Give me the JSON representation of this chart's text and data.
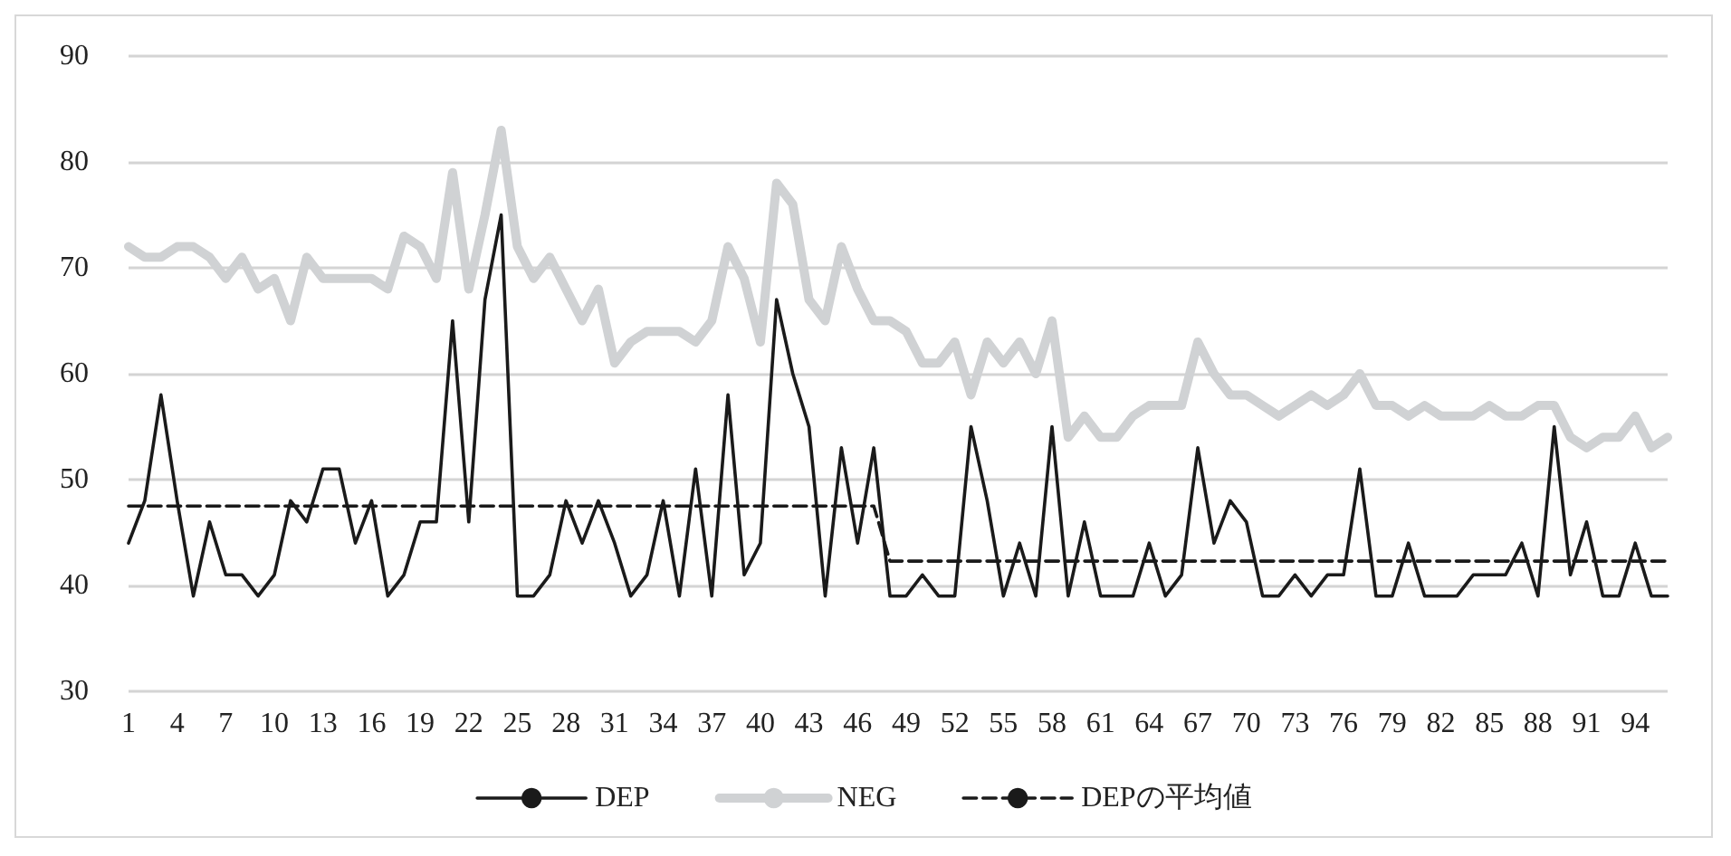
{
  "chart_data": {
    "type": "line",
    "categories": [
      "1",
      null,
      null,
      "4",
      null,
      null,
      "7",
      null,
      null,
      "10",
      null,
      null,
      "13",
      null,
      null,
      "16",
      null,
      null,
      "19",
      null,
      null,
      "22",
      null,
      null,
      "25",
      null,
      null,
      "28",
      null,
      null,
      "31",
      null,
      null,
      "34",
      null,
      null,
      "37",
      null,
      null,
      "40",
      null,
      null,
      "43",
      null,
      null,
      "46",
      null,
      null,
      "49",
      null,
      null,
      "52",
      null,
      null,
      "55",
      null,
      null,
      "58",
      null,
      null,
      "61",
      null,
      null,
      "64",
      null,
      null,
      "67",
      null,
      null,
      "70",
      null,
      null,
      "73",
      null,
      null,
      "76",
      null,
      null,
      "79",
      null,
      null,
      "82",
      null,
      null,
      "85",
      null,
      null,
      "88",
      null,
      null,
      "91",
      null,
      null,
      "94",
      null,
      null
    ],
    "series": [
      {
        "name": "DEP",
        "color": "#1a1a1a",
        "line_style": "solid",
        "values": [
          44,
          48,
          58,
          48,
          39,
          46,
          41,
          41,
          39,
          41,
          48,
          46,
          51,
          51,
          44,
          48,
          39,
          41,
          46,
          46,
          65,
          46,
          67,
          75,
          39,
          39,
          41,
          48,
          44,
          48,
          44,
          39,
          41,
          48,
          39,
          51,
          39,
          58,
          41,
          44,
          67,
          60,
          55,
          39,
          53,
          44,
          53,
          39,
          39,
          41,
          39,
          39,
          55,
          48,
          39,
          44,
          39,
          55,
          39,
          46,
          39,
          39,
          39,
          44,
          39,
          41,
          53,
          44,
          48,
          46,
          39,
          39,
          41,
          39,
          41,
          41,
          51,
          39,
          39,
          44,
          39,
          39,
          39,
          41,
          41,
          41,
          44,
          39,
          55,
          41,
          46,
          39,
          39,
          44,
          39,
          39
        ]
      },
      {
        "name": "NEG",
        "color": "#d0d2d4",
        "line_style": "solid",
        "values": [
          72,
          71,
          71,
          72,
          72,
          71,
          69,
          71,
          68,
          69,
          65,
          71,
          69,
          69,
          69,
          69,
          68,
          73,
          72,
          69,
          79,
          68,
          75,
          83,
          72,
          69,
          71,
          68,
          65,
          68,
          61,
          63,
          64,
          64,
          64,
          63,
          65,
          72,
          69,
          63,
          78,
          76,
          67,
          65,
          72,
          68,
          65,
          65,
          64,
          61,
          61,
          63,
          58,
          63,
          61,
          63,
          60,
          65,
          54,
          56,
          54,
          54,
          56,
          57,
          57,
          57,
          63,
          60,
          58,
          58,
          57,
          56,
          57,
          58,
          57,
          58,
          60,
          57,
          57,
          56,
          57,
          56,
          56,
          56,
          57,
          56,
          56,
          57,
          57,
          54,
          53,
          54,
          54,
          56,
          53,
          54
        ]
      },
      {
        "name": "DEPの平均値",
        "color": "#1a1a1a",
        "line_style": "dashed",
        "values": [
          47.5,
          47.5,
          47.5,
          47.5,
          47.5,
          47.5,
          47.5,
          47.5,
          47.5,
          47.5,
          47.5,
          47.5,
          47.5,
          47.5,
          47.5,
          47.5,
          47.5,
          47.5,
          47.5,
          47.5,
          47.5,
          47.5,
          47.5,
          47.5,
          47.5,
          47.5,
          47.5,
          47.5,
          47.5,
          47.5,
          47.5,
          47.5,
          47.5,
          47.5,
          47.5,
          47.5,
          47.5,
          47.5,
          47.5,
          47.5,
          47.5,
          47.5,
          47.5,
          47.5,
          47.5,
          47.5,
          47.5,
          42.3,
          42.3,
          42.3,
          42.3,
          42.3,
          42.3,
          42.3,
          42.3,
          42.3,
          42.3,
          42.3,
          42.3,
          42.3,
          42.3,
          42.3,
          42.3,
          42.3,
          42.3,
          42.3,
          42.3,
          42.3,
          42.3,
          42.3,
          42.3,
          42.3,
          42.3,
          42.3,
          42.3,
          42.3,
          42.3,
          42.3,
          42.3,
          42.3,
          42.3,
          42.3,
          42.3,
          42.3,
          42.3,
          42.3,
          42.3,
          42.3,
          42.3,
          42.3,
          42.3,
          42.3,
          42.3,
          42.3,
          42.3,
          42.3
        ]
      }
    ],
    "ylim": [
      30,
      90
    ],
    "yticks": [
      30,
      40,
      50,
      60,
      70,
      80,
      90
    ],
    "grid": "y",
    "legend": "bottom",
    "marker": "none"
  }
}
